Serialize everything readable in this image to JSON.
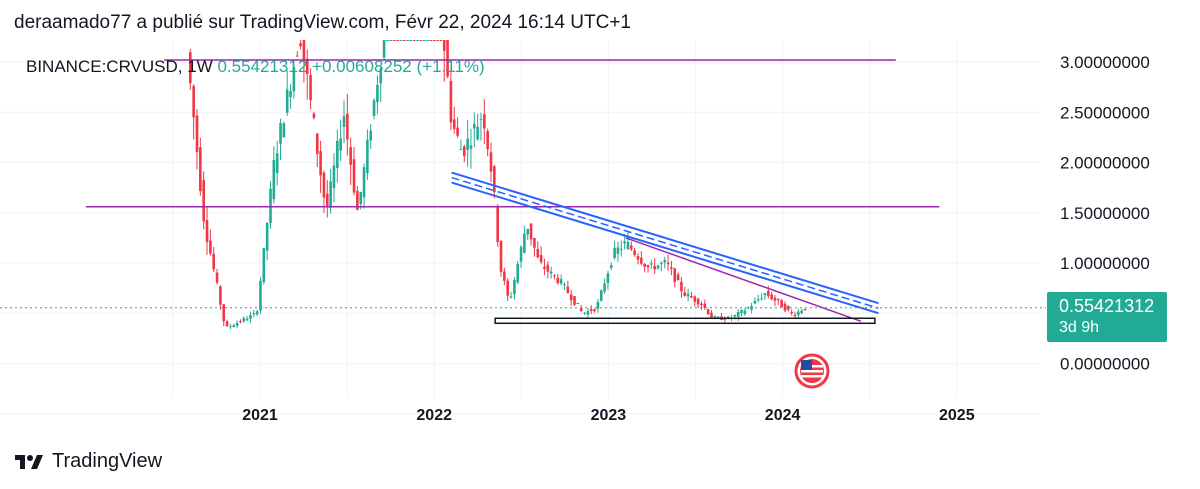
{
  "header": {
    "attribution": "deraamado77 a publié sur TradingView.com, Févr 22, 2024 16:14 UTC+1"
  },
  "symbol": {
    "name": "BINANCE:CRVUSD, 1W",
    "price": "0.55421312",
    "change": "+0.00608252 (+1.11%)"
  },
  "price_tag": {
    "value": "0.55421312",
    "countdown": "3d 9h"
  },
  "footer": {
    "brand": "TradingView"
  },
  "colors": {
    "up": "#22ab94",
    "down": "#f23645",
    "horizontal_level": "#9c27b0",
    "trend_channel": "#2962ff",
    "grid": "#f0f3fa"
  },
  "chart_data": {
    "type": "candlestick",
    "interval": "1W",
    "x_axis": {
      "tick_labels": [
        "2021",
        "2022",
        "2023",
        "2024",
        "2025"
      ],
      "range": [
        2020.0,
        2025.35
      ]
    },
    "y_axis": {
      "tick_labels": [
        "3.00000000",
        "2.50000000",
        "2.00000000",
        "1.50000000",
        "1.00000000",
        "0.00000000"
      ],
      "ticks": [
        3.0,
        2.5,
        2.0,
        1.5,
        1.0,
        0.0
      ],
      "range": [
        -0.38,
        3.1
      ]
    },
    "grid": true,
    "last_price": 0.55421312,
    "drawings": [
      {
        "kind": "horizontal-segment",
        "color": "#9c27b0",
        "y": 3.02,
        "x": [
          2020.45,
          2024.65
        ]
      },
      {
        "kind": "horizontal-segment",
        "color": "#9c27b0",
        "y": 1.56,
        "x": [
          2020.0,
          2024.9
        ]
      },
      {
        "kind": "trend-channel",
        "color": "#2962ff",
        "from": [
          2022.1,
          1.85
        ],
        "to": [
          2024.55,
          0.55
        ]
      },
      {
        "kind": "trend-line",
        "color": "#9c27b0",
        "from": [
          2023.1,
          1.25
        ],
        "to": [
          2024.45,
          0.42
        ]
      },
      {
        "kind": "support-box",
        "color": "#131722",
        "x": [
          2022.35,
          2024.53
        ],
        "y": [
          0.4,
          0.45
        ]
      }
    ],
    "key_points": [
      {
        "x": 2020.6,
        "y": 3.1
      },
      {
        "x": 2020.7,
        "y": 1.4
      },
      {
        "x": 2020.82,
        "y": 0.35
      },
      {
        "x": 2021.0,
        "y": 0.5
      },
      {
        "x": 2021.1,
        "y": 2.0
      },
      {
        "x": 2021.25,
        "y": 3.3
      },
      {
        "x": 2021.4,
        "y": 1.5
      },
      {
        "x": 2021.5,
        "y": 2.5
      },
      {
        "x": 2021.58,
        "y": 1.5
      },
      {
        "x": 2021.75,
        "y": 3.5
      },
      {
        "x": 2022.0,
        "y": 4.5
      },
      {
        "x": 2022.12,
        "y": 2.4
      },
      {
        "x": 2022.18,
        "y": 2.1
      },
      {
        "x": 2022.3,
        "y": 2.5
      },
      {
        "x": 2022.35,
        "y": 1.9
      },
      {
        "x": 2022.4,
        "y": 0.95
      },
      {
        "x": 2022.45,
        "y": 0.6
      },
      {
        "x": 2022.55,
        "y": 1.4
      },
      {
        "x": 2022.62,
        "y": 1.0
      },
      {
        "x": 2022.75,
        "y": 0.8
      },
      {
        "x": 2022.87,
        "y": 0.5
      },
      {
        "x": 2022.95,
        "y": 0.55
      },
      {
        "x": 2023.05,
        "y": 1.1
      },
      {
        "x": 2023.12,
        "y": 1.2
      },
      {
        "x": 2023.25,
        "y": 0.95
      },
      {
        "x": 2023.35,
        "y": 1.0
      },
      {
        "x": 2023.45,
        "y": 0.7
      },
      {
        "x": 2023.55,
        "y": 0.6
      },
      {
        "x": 2023.62,
        "y": 0.45
      },
      {
        "x": 2023.72,
        "y": 0.45
      },
      {
        "x": 2023.82,
        "y": 0.55
      },
      {
        "x": 2023.92,
        "y": 0.7
      },
      {
        "x": 2024.0,
        "y": 0.6
      },
      {
        "x": 2024.08,
        "y": 0.48
      },
      {
        "x": 2024.14,
        "y": 0.55
      }
    ]
  }
}
